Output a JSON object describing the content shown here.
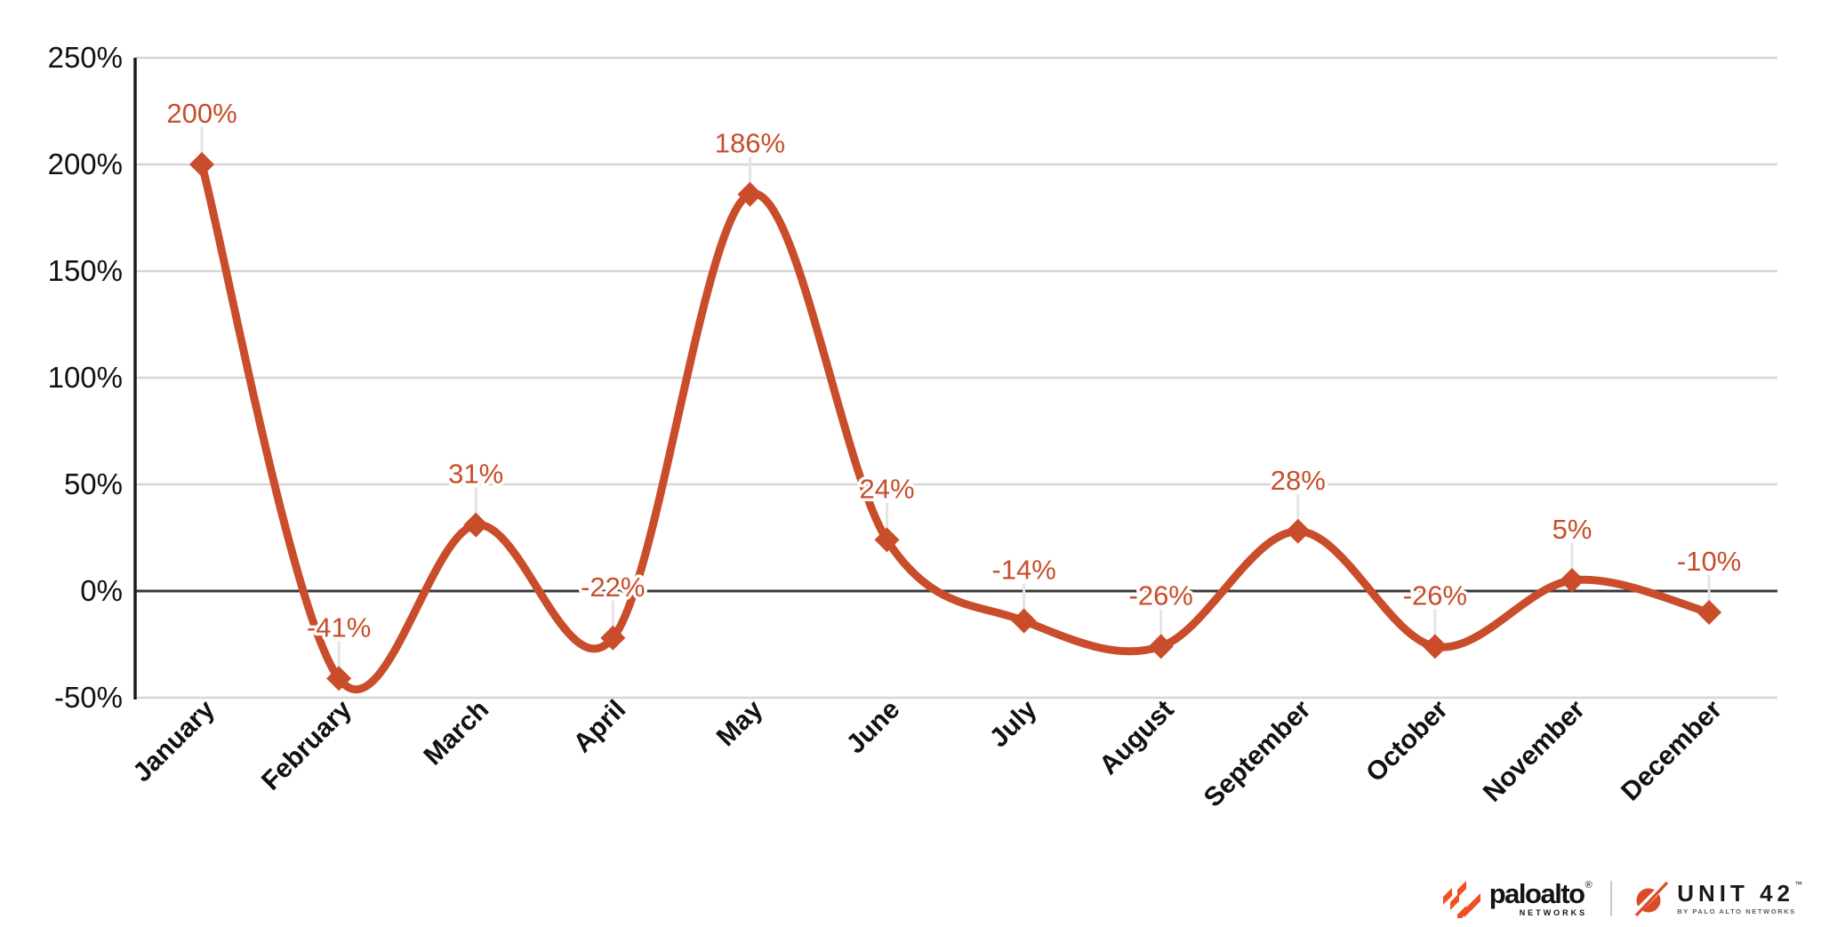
{
  "chart_data": {
    "type": "line",
    "title": "",
    "xlabel": "",
    "ylabel": "",
    "categories": [
      "January",
      "February",
      "March",
      "April",
      "May",
      "June",
      "July",
      "August",
      "September",
      "October",
      "November",
      "December"
    ],
    "values": [
      200,
      -41,
      31,
      -22,
      186,
      24,
      -14,
      -26,
      28,
      -26,
      5,
      -10
    ],
    "point_labels": [
      "200%",
      "-41%",
      "31%",
      "-22%",
      "186%",
      "24%",
      "-14%",
      "-26%",
      "28%",
      "-26%",
      "5%",
      "-10%"
    ],
    "y_ticks": [
      {
        "value": 250,
        "label": "250%"
      },
      {
        "value": 200,
        "label": "200%"
      },
      {
        "value": 150,
        "label": "150%"
      },
      {
        "value": 100,
        "label": "100%"
      },
      {
        "value": 50,
        "label": "50%"
      },
      {
        "value": 0,
        "label": "0%"
      },
      {
        "value": -50,
        "label": "-50%"
      }
    ],
    "ylim": [
      -50,
      250
    ],
    "grid": true,
    "legend_position": "none",
    "line_style": "smooth",
    "marker": "diamond",
    "colors": {
      "series": "#C94D2A",
      "data_label": "#C94D2A",
      "gridline": "#d6d6d6",
      "zero_line": "#3a3a3a",
      "axis_line": "#1a1a1a",
      "tick_text": "#111111",
      "leader_tick": "#e4e4e4"
    }
  },
  "footer": {
    "paloalto": {
      "name": "paloalto",
      "registered": "®",
      "sub": "NETWORKS",
      "brand_color": "#F04E23"
    },
    "unit42": {
      "name": "UNIT 42",
      "trademark": "™",
      "sub": "BY PALO ALTO NETWORKS",
      "brand_color": "#DA4B27"
    }
  }
}
